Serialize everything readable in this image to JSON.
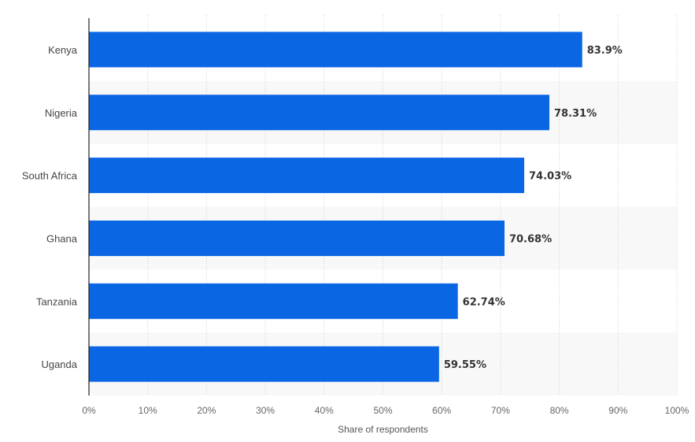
{
  "chart_data": {
    "type": "bar",
    "orientation": "horizontal",
    "categories": [
      "Kenya",
      "Nigeria",
      "South Africa",
      "Ghana",
      "Tanzania",
      "Uganda"
    ],
    "values": [
      83.9,
      78.31,
      74.03,
      70.68,
      62.74,
      59.55
    ],
    "value_labels": [
      "83.9%",
      "78.31%",
      "74.03%",
      "70.68%",
      "62.74%",
      "59.55%"
    ],
    "xlabel": "Share of respondents",
    "ylabel": "",
    "xlim": [
      0,
      100
    ],
    "x_ticks": [
      "0%",
      "10%",
      "20%",
      "30%",
      "40%",
      "50%",
      "60%",
      "70%",
      "80%",
      "90%",
      "100%"
    ],
    "grid": "vertical dotted",
    "bar_color": "#0b66e4",
    "band_color": "#f8f8f8"
  }
}
